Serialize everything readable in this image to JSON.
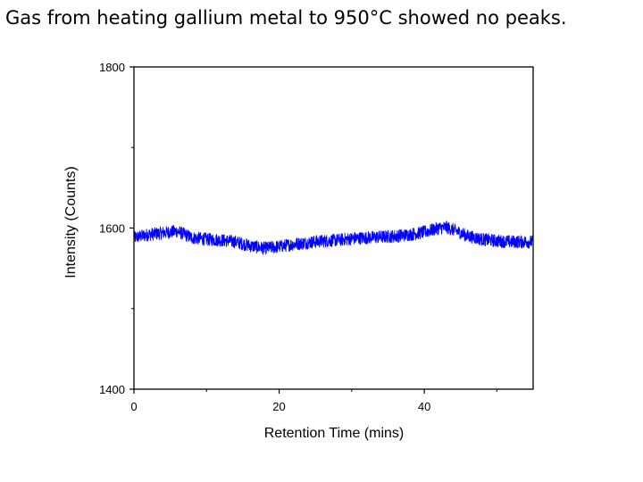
{
  "slide": {
    "title": "Gas from heating gallium metal to 950°C showed no peaks."
  },
  "chart_data": {
    "type": "line",
    "title": "",
    "xlabel": "Retention Time (mins)",
    "ylabel": "Intensity (Counts)",
    "xlim": [
      0,
      55
    ],
    "ylim": [
      1400,
      1800
    ],
    "x_ticks": [
      0,
      20,
      40
    ],
    "x_minor_ticks": [
      10,
      30,
      50
    ],
    "y_ticks": [
      1400,
      1600,
      1800
    ],
    "y_minor_ticks": [
      1500,
      1700
    ],
    "grid": false,
    "legend": "none",
    "series": [
      {
        "color": "#0000ff",
        "noise_band": 8,
        "x": [
          0,
          2,
          4,
          6,
          7,
          8,
          10,
          12,
          14,
          16,
          18,
          20,
          22,
          24,
          26,
          28,
          30,
          32,
          34,
          36,
          38,
          40,
          42,
          43,
          44,
          46,
          48,
          50,
          52,
          55
        ],
        "y": [
          1588,
          1592,
          1594,
          1596,
          1592,
          1588,
          1586,
          1585,
          1583,
          1578,
          1575,
          1577,
          1580,
          1582,
          1584,
          1585,
          1587,
          1588,
          1589,
          1590,
          1592,
          1595,
          1600,
          1601,
          1598,
          1590,
          1586,
          1584,
          1583,
          1583
        ]
      }
    ]
  }
}
